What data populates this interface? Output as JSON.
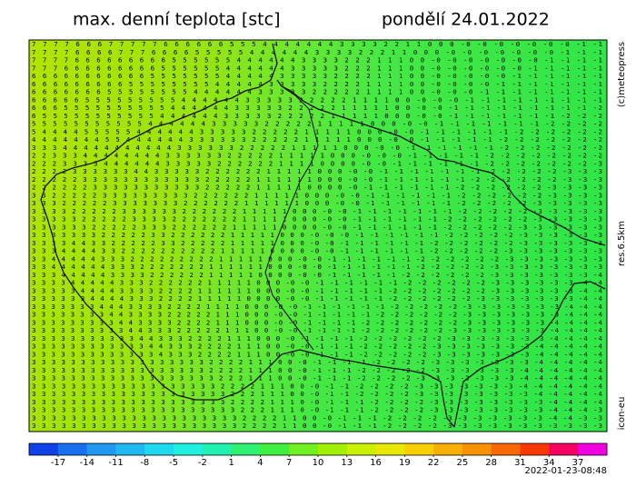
{
  "header": {
    "title": "max. denní teplota [stc]",
    "date": "pondělí 24.01.2022"
  },
  "side_labels": {
    "copyright": "(c)meteopress",
    "resolution": "res.6.5km",
    "model": "icon-eu"
  },
  "grid": {
    "rows": [
      "7 7 7 7 6 6 6 7 7 7 7 7 6 6 6 6 6 6 5 5 5 4 4 4 4 4 4 4 3 3 3 3 2 2 1 1 0 0 0 -0 -0 -0 -0 -0 -0 -0 -1 -1",
      "7 7 7 7 6 6 6 6 7 7 7 6 6 6 6 5 5 5 5 5 4 4 4 4 4 4 3 3 3 3 2 2 2 1 1 0 0 0 -0 -0 -0 -0 -0 -0 -0 -1 -1 -1",
      "7 7 7 7 6 6 6 6 6 6 6 6 6 5 5 5 5 5 5 4 4 4 4 4 4 3 3 3 3 2 2 2 1 1 1 0 0 -0 -0 -0 -0 -0 -0 -0 -1 -1 -1 -1",
      "7 7 7 6 6 6 6 6 6 6 6 6 5 5 5 5 5 5 4 4 4 4 4 4 3 3 3 3 3 2 2 2 1 1 1 0 0 -0 -0 -0 -0 -0 -0 -1 -1 -1 -1 -1",
      "6 6 6 6 6 6 6 6 6 6 6 5 5 5 5 5 5 5 4 4 4 4 4 3 3 3 3 3 2 2 2 2 1 1 1 0 0 -0 -0 -0 -0 -0 -1 -1 -1 -1 -1 -1",
      "6 6 6 6 6 6 6 6 6 5 5 5 5 5 5 5 5 4 4 4 4 4 3 3 3 3 3 2 2 2 2 1 1 1 1 0 0 -0 -0 -0 -0 -1 -1 -1 -1 -1 -1 -1",
      "6 6 6 6 6 6 6 5 5 5 5 5 5 5 5 4 4 4 4 4 4 3 3 3 3 3 2 2 2 2 2 1 1 1 1 0 0 -0 -0 -0 -1 -1 -1 -1 -1 -1 -1 -1",
      "6 6 6 6 6 5 5 5 5 5 5 5 5 5 4 4 4 4 4 4 3 3 3 3 3 2 2 2 2 2 1 1 1 1 0 0 -0 -0 -0 -1 -1 -1 -1 -1 -1 -1 -1 -1",
      "6 6 6 5 5 5 5 5 5 5 5 5 5 4 4 4 4 4 4 3 3 3 3 3 2 2 2 2 2 1 1 1 1 1 0 0 -0 -0 -1 -1 -1 -1 -1 -1 -1 -1 -1 -2",
      "6 5 5 5 5 5 5 5 5 5 5 5 4 4 4 4 4 4 3 3 3 3 3 2 2 2 2 2 1 1 1 1 1 0 0 0 -0 -0 -1 -1 -1 -1 -1 -1 -1 -2 -2 -2",
      "5 5 5 5 5 5 5 5 5 5 5 4 4 4 4 4 4 3 3 3 3 3 2 2 2 2 2 1 1 1 1 1 0 0 0 -0 -0 -1 -1 -1 -1 -1 -1 -1 -2 -2 -2 -2",
      "5 4 4 4 4 5 5 5 5 5 4 4 4 4 4 4 3 3 3 3 3 2 2 2 2 2 1 1 1 1 1 0 0 0 -0 -0 -1 -1 -1 -1 -1 -1 -2 -2 -2 -2 -2 -2",
      "4 4 4 4 4 4 4 5 5 4 4 4 4 4 4 3 3 3 3 3 3 2 2 2 2 2 1 1 1 1 1 0 0 0 -0 -0 -1 -1 -1 -1 -1 -2 -2 -2 -2 -2 -2 -2",
      "3 3 3 4 4 4 4 4 4 4 4 4 4 4 3 3 3 3 3 3 2 2 2 2 2 1 1 1 1 1 0 0 0 -0 -0 -1 -1 -1 -1 -1 -1 -2 -2 -2 -2 -2 -2 -2",
      "2 2 3 3 3 4 4 4 4 4 4 4 4 3 3 3 3 3 3 2 2 2 2 2 1 1 1 1 1 0 0 0 -0 -0 -0 -1 -1 -1 -1 -1 -2 -2 -2 -2 -2 -2 -2 -2",
      "2 2 2 3 3 3 3 4 4 4 4 4 4 3 3 3 3 3 2 2 2 2 2 2 1 1 1 1 0 0 0 0 -0 -0 -1 -1 -1 -1 -1 -1 -2 -2 -2 -2 -2 -2 -2 -3",
      "2 2 2 2 3 3 3 3 3 3 4 4 3 3 3 3 3 2 2 2 2 2 2 1 1 1 1 1 0 0 0 -0 -0 -1 -1 -1 -1 -1 -1 -1 -2 -2 -2 -2 -2 -3 -3 -3",
      "2 2 2 2 2 3 3 3 3 3 3 3 3 3 3 3 3 2 2 2 2 2 1 1 1 1 1 1 0 0 0 -0 -0 -1 -1 -1 -1 -1 -1 -2 -2 -2 -2 -2 -2 -3 -3 -3",
      "2 2 2 2 2 2 3 3 3 3 3 3 3 3 3 3 3 2 2 2 2 2 1 1 1 1 1 0 0 0 0 -0 -1 -1 -1 -1 -1 -1 -2 -2 -2 -2 -2 -2 -3 -3 -3 -3",
      "3 3 2 2 2 2 2 3 3 3 3 3 3 3 3 3 2 2 2 2 2 2 1 1 1 1 1 0 0 0 -0 -0 -1 -1 -1 -1 -1 -1 -2 -2 -2 -2 -2 -2 -3 -3 -3 -3",
      "3 3 3 2 2 2 2 2 3 3 3 3 3 3 3 2 2 2 2 2 2 1 1 1 1 1 1 0 0 0 -0 -0 -1 -1 -1 -1 -1 -1 -2 -2 -2 -2 -2 -3 -3 -3 -3 -3",
      "3 3 3 3 2 2 2 2 2 3 3 3 3 3 3 2 2 2 2 2 2 1 1 1 1 1 0 0 0 -0 -0 -1 -1 -1 -1 -1 -1 -1 -2 -2 -2 -2 -2 -3 -3 -3 -3 -3",
      "3 3 3 3 3 2 2 2 2 2 3 3 3 3 2 2 2 2 2 2 2 1 1 1 1 1 0 0 0 -0 -0 -1 -1 -1 -1 -1 -1 -2 -2 -2 -2 -2 -2 -3 -3 -3 -3 -3",
      "3 3 3 3 3 3 2 2 2 2 2 3 3 3 2 2 2 2 2 2 1 1 1 1 1 0 0 0 0 -0 -0 -1 -1 -1 -1 -1 -1 -2 -2 -2 -2 -2 -3 -3 -3 -3 -3 -3",
      "3 3 3 3 3 3 3 2 2 2 2 2 3 3 2 2 2 2 2 2 1 1 1 1 1 0 0 0 -0 -0 -0 -1 -1 -1 -1 -1 -1 -2 -2 -2 -2 -2 -3 -3 -3 -3 -3 -3",
      "3 3 3 3 4 4 3 3 2 2 2 2 2 3 3 2 2 2 2 2 1 1 1 1 1 0 0 0 -0 -0 -1 -1 -1 -1 -1 -1 -2 -2 -2 -2 -2 -2 -3 -3 -3 -3 -3 -3",
      "3 3 3 4 4 4 4 3 3 2 2 2 2 2 2 2 2 2 2 1 1 1 1 1 0 0 0 0 -0 -0 -1 -1 -1 -1 -1 -1 -2 -2 -2 -2 -2 -3 -3 -3 -3 -3 -3 -3",
      "3 3 4 4 4 4 4 3 3 3 2 2 2 2 2 2 2 2 2 1 1 1 1 1 0 0 0 -0 -0 -1 -1 -1 -1 -1 -1 -2 -2 -2 -2 -2 -2 -3 -3 -3 -3 -3 -3 -3",
      "3 3 4 4 4 4 4 4 3 3 3 2 2 2 2 2 2 2 1 1 1 1 1 1 0 0 0 -0 -0 -1 -1 -1 -1 -1 -1 -2 -2 -2 -2 -2 -3 -3 -3 -3 -3 -3 -3 -3",
      "3 3 3 4 4 4 4 4 3 3 3 3 2 2 2 2 2 2 1 1 1 1 1 0 0 0 0 -0 -0 -1 -1 -1 -1 -1 -2 -2 -2 -2 -2 -2 -3 -3 -3 -3 -3 -3 -3 -4",
      "3 3 3 3 4 4 4 4 4 3 3 3 2 2 2 2 2 2 1 1 1 1 1 0 0 0 -0 -0 -1 -1 -1 -1 -1 -1 -2 -2 -2 -2 -2 -2 -3 -3 -3 -3 -3 -3 -4 -4",
      "3 3 3 3 3 4 4 4 4 3 3 3 3 2 2 2 2 1 1 1 1 1 1 0 0 0 -0 -0 -1 -1 -1 -1 -1 -2 -2 -2 -2 -2 -2 -2 -3 -3 -3 -3 -3 -3 -4 -4",
      "3 3 3 3 3 3 4 4 4 4 3 3 3 2 2 2 2 1 1 1 1 1 0 0 0 0 -0 -0 -1 -1 -1 -1 -1 -2 -2 -2 -2 -2 -2 -3 -3 -3 -3 -3 -3 -3 -4 -4",
      "3 3 3 3 3 3 3 4 4 4 3 3 3 3 2 2 2 2 1 1 1 1 0 0 0 -0 -0 -1 -1 -1 -1 -1 -1 -2 -2 -2 -2 -2 -3 -3 -3 -3 -3 -3 -3 -4 -4 -4",
      "3 3 3 3 3 3 3 3 4 4 3 3 3 3 2 2 2 2 2 1 1 1 0 0 0 -0 -0 -1 -1 -1 -1 -1 -2 -2 -2 -2 -2 -2 -3 -3 -3 -3 -3 -3 -3 -4 -4 -4",
      "3 3 3 3 3 3 3 3 3 4 4 3 3 3 3 2 2 2 2 1 1 1 0 0 0 -0 -0 -1 -1 -1 -1 -2 -2 -2 -2 -2 -2 -2 -3 -3 -3 -3 -3 -3 -4 -4 -4 -4",
      "3 3 3 3 3 3 3 3 3 3 4 4 3 3 3 2 2 2 2 2 1 1 1 0 0 -0 -0 -1 -1 -1 -1 -2 -2 -2 -2 -2 -2 -3 -3 -3 -3 -3 -3 -3 -4 -4 -4 -4",
      "3 3 3 3 3 3 3 3 3 3 3 4 4 3 3 3 2 2 2 2 1 1 1 0 0 0 -0 -1 -1 -1 -1 -2 -2 -2 -2 -2 -2 -3 -3 -3 -3 -3 -3 -3 -4 -4 -4 -4",
      "3 3 3 3 3 3 3 3 3 3 3 3 4 4 3 3 3 2 2 2 2 1 1 1 0 0 -0 -0 -1 -1 -1 -2 -2 -2 -2 -2 -3 -3 -3 -3 -3 -3 -3 -4 -4 -4 -4 -4",
      "3 3 3 3 3 3 3 3 3 3 3 3 3 4 3 3 3 2 2 2 2 1 1 1 0 0 -0 -0 -1 -1 -1 -2 -2 -2 -2 -2 -3 -3 -3 -3 -3 -3 -3 -4 -4 -4 -4 -4",
      "3 3 3 3 3 3 3 3 3 3 3 3 3 3 3 3 3 3 2 2 2 2 1 1 1 0 0 -0 -1 -1 -1 -1 -2 -2 -2 -2 -3 -3 -3 -3 -3 -3 -3 -4 -4 -4 -4 -4",
      "3 3 3 3 3 3 3 3 3 3 3 3 3 3 3 3 3 3 2 2 2 2 1 1 1 0 0 -0 -1 -1 -1 -2 -2 -2 -2 -2 -3 -3 -3 -3 -3 -3 -4 -4 -4 -4 -4 -4",
      "3 3 3 3 3 3 3 3 3 3 3 3 3 3 3 3 3 3 3 2 2 2 1 1 1 0 0 -0 -1 -1 -1 -2 -2 -2 -2 -3 -3 -3 -3 -3 -3 -3 -4 -4 -4 -4 -4 -4",
      "3 3 3 3 3 3 3 3 3 3 3 3 3 3 3 3 3 3 3 2 2 2 2 1 1 1 0 0 -0 -1 -1 -2 -2 -2 -2 -3 -3 -3 -3 -3 -3 -3 -4 -4 -4 -4 -4 -4",
      "3 3 3 3 3 3 3 3 3 3 3 3 3 3 3 3 3 3 3 3 2 2 2 1 1 1 0 0 -0 -1 -1 -2 -2 -2 -2 -3 -3 -3 -3 -3 -3 -3 -3 -4 -4 -4 -4 -4",
      "3 3 3 3 3 3 3 3 3 3 3 3 3 3 3 3 3 3 3 3 2 2 2 2 1 1 1 0 -0 -1 -1 -1 -2 -2 -2 -2 -3 -3 -3 -3 -3 -3 -3 -3 -4 -4 -4 -4",
      "3 3 3 3 3 3 3 3 3 3 3 3 3 3 3 3 3 3 3 3 3 2 2 2 1 1 1 0 -0 -1 -1 -1 -2 -2 -2 -2 -3 -3 -3 -3 -3 -3 -3 -3 -4 -4 -4 -3",
      "3 3 3 3 3 3 3 3 3 3 3 3 3 3 3 3 3 3 3 3 3 2 2 2 2 1 1 0 0 -0 -1 -1 -1 -2 -2 -2 -2 -3 -3 -3 -3 -3 -3 -3 -4 -4 -3 -3",
      "3 3 3 3 3 3 3 3 3 3 3 3 3 3 3 3 3 3 3 3 3 2 2 2 2 1 1 0 0 -0 -1 -1 -1 -2 -2 -2 -2 -3 -3 -3 -3 -3 -3 -3 -3 -3 -3 -3"
    ]
  },
  "legend": {
    "ticks": [
      -17,
      -14,
      -11,
      -8,
      -5,
      -2,
      1,
      4,
      7,
      10,
      13,
      16,
      19,
      22,
      25,
      28,
      31,
      34,
      37
    ],
    "colors": [
      "#1040e8",
      "#1870f0",
      "#2098f0",
      "#20b8f0",
      "#20d8f0",
      "#20f0e0",
      "#20f0b0",
      "#30f070",
      "#40f040",
      "#70f020",
      "#a0f000",
      "#c8f000",
      "#e8e800",
      "#f8d000",
      "#f8b000",
      "#f89000",
      "#f86800",
      "#f83800",
      "#f80060",
      "#f000e0"
    ]
  },
  "timestamp": "2022-01-23-08:48"
}
